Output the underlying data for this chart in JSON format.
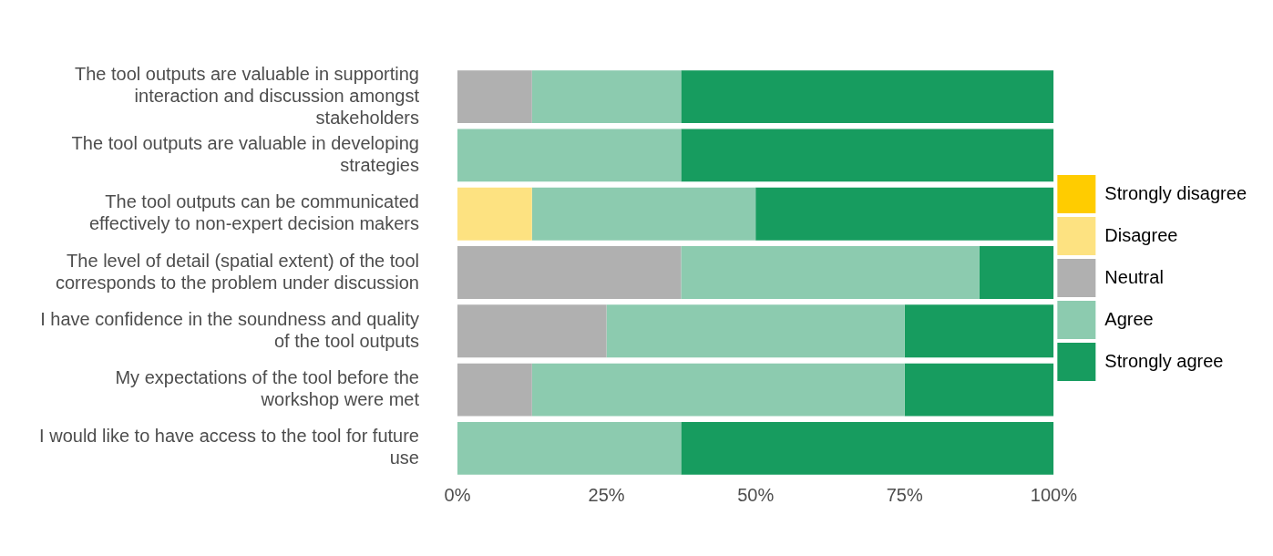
{
  "chart_data": {
    "type": "bar",
    "orientation": "horizontal",
    "stacked": true,
    "categories": [
      "The tool outputs are valuable in supporting interaction and discussion amongst stakeholders",
      "The tool outputs are valuable in developing strategies",
      "The tool outputs can be communicated effectively to non-expert decision makers",
      "The level of detail (spatial extent) of the tool corresponds to the problem under discussion",
      "I have confidence in the soundness and quality of the tool outputs",
      "My expectations of the tool before the workshop were met",
      "I would like to have access to the tool for future use"
    ],
    "series": [
      {
        "name": "Strongly disagree",
        "color": "#ffcc00",
        "values": [
          0,
          0,
          0,
          0,
          0,
          0,
          0
        ]
      },
      {
        "name": "Disagree",
        "color": "#fde281",
        "values": [
          0,
          0,
          12.5,
          0,
          0,
          0,
          0
        ]
      },
      {
        "name": "Neutral",
        "color": "#b0b0b0",
        "values": [
          12.5,
          0,
          0,
          37.5,
          25,
          12.5,
          0
        ]
      },
      {
        "name": "Agree",
        "color": "#8ccbaf",
        "values": [
          25,
          37.5,
          37.5,
          50,
          50,
          62.5,
          37.5
        ]
      },
      {
        "name": "Strongly agree",
        "color": "#179c5f",
        "values": [
          62.5,
          62.5,
          50,
          12.5,
          25,
          25,
          62.5
        ]
      }
    ],
    "xlim": [
      0,
      100
    ],
    "xticks": [
      {
        "value": 0,
        "label": "0%"
      },
      {
        "value": 25,
        "label": "25%"
      },
      {
        "value": 50,
        "label": "50%"
      },
      {
        "value": 75,
        "label": "75%"
      },
      {
        "value": 100,
        "label": "100%"
      }
    ],
    "grid": false,
    "legend": "right"
  }
}
